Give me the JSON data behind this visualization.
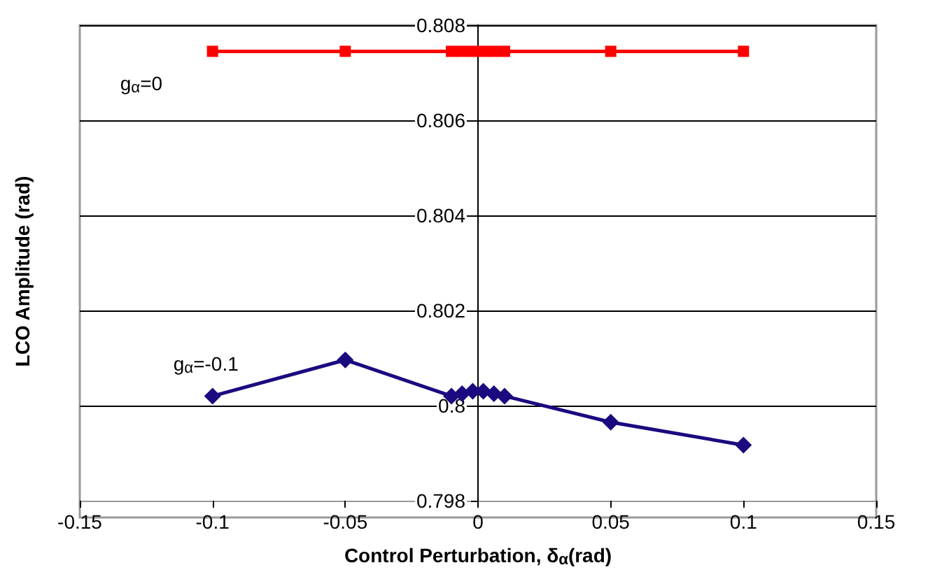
{
  "chart_data": {
    "type": "line",
    "xlabel": "Control Perturbation, δ$_{α}$(rad)",
    "ylabel": "LCO Amplitude (rad)",
    "xlim": [
      -0.15,
      0.15
    ],
    "xticks": [
      -0.15,
      -0.1,
      -0.05,
      0,
      0.05,
      0.1,
      0.15
    ],
    "ylim": [
      0.798,
      0.808
    ],
    "yticks": [
      0.798,
      0.8,
      0.802,
      0.804,
      0.806,
      0.808
    ],
    "grid": "y",
    "legend": false,
    "line_style": "solid",
    "series": [
      {
        "name": "g$_{α}$=0",
        "color": "#ff0000",
        "marker": "square",
        "x": [
          -0.1,
          -0.05,
          -0.01,
          -0.006,
          -0.002,
          0.002,
          0.006,
          0.01,
          0.05,
          0.1
        ],
        "values": [
          0.80745,
          0.80745,
          0.80745,
          0.80745,
          0.80745,
          0.80745,
          0.80745,
          0.80745,
          0.80745,
          0.80745
        ]
      },
      {
        "name": "g$_{α}$=-0.1",
        "color": "#1a0a80",
        "marker": "diamond",
        "x": [
          -0.1,
          -0.05,
          -0.01,
          -0.006,
          -0.002,
          0.002,
          0.006,
          0.01,
          0.05,
          0.1
        ],
        "values": [
          0.8002,
          0.80096,
          0.8002,
          0.80025,
          0.8003,
          0.8003,
          0.80025,
          0.8002,
          0.79965,
          0.79917
        ]
      }
    ]
  }
}
